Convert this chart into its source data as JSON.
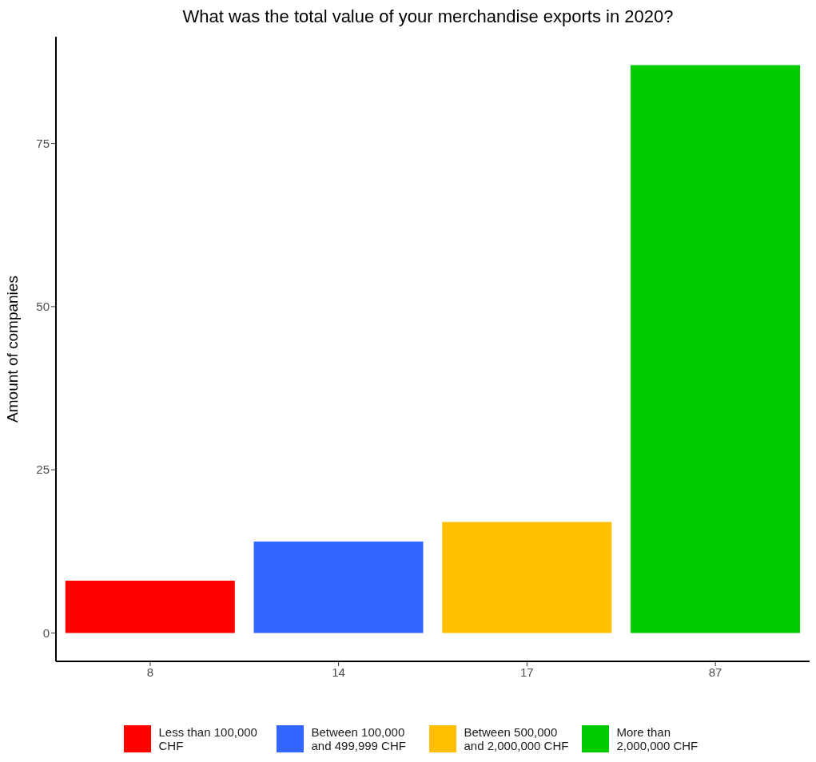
{
  "chart_data": {
    "type": "bar",
    "title": "What was the total value of your merchandise exports in 2020?",
    "ylabel": "Amount of companies",
    "categories": [
      "8",
      "14",
      "17",
      "87"
    ],
    "series": [
      {
        "name": "Less than 100,000 CHF",
        "color": "#ff0000",
        "values": [
          8,
          null,
          null,
          null
        ]
      },
      {
        "name": "Between 100,000 and 499,999 CHF",
        "color": "#3366ff",
        "values": [
          null,
          14,
          null,
          null
        ]
      },
      {
        "name": "Between 500,000 and 2,000,000 CHF",
        "color": "#ffbf00",
        "values": [
          null,
          null,
          17,
          null
        ]
      },
      {
        "name": "More than 2,000,000 CHF",
        "color": "#00cc00",
        "values": [
          null,
          null,
          null,
          87
        ]
      }
    ],
    "stacked": true,
    "ylim": [
      -4.35,
      91.35
    ],
    "yticks": [
      0,
      25,
      50,
      75
    ],
    "grid": false,
    "legend": "bottom"
  }
}
